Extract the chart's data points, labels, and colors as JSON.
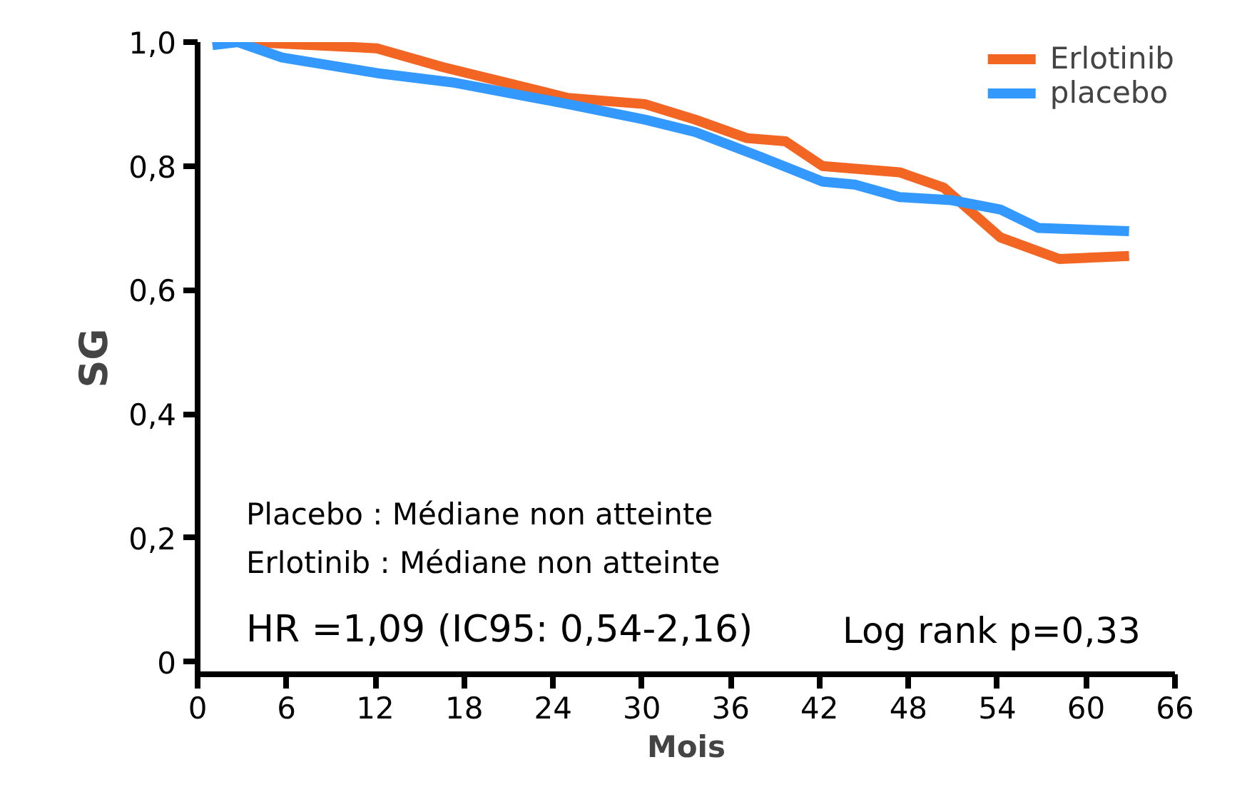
{
  "chart_data": {
    "type": "line",
    "xlabel": "Mois",
    "ylabel": "SG",
    "series": [
      {
        "name": "Erlotinib",
        "color": "#f26522",
        "x": [
          3.6,
          12.1,
          16.5,
          25,
          30.2,
          33.6,
          37.1,
          39.7,
          42.2,
          47.4,
          50.4,
          54.2,
          58.2,
          62.9
        ],
        "values": [
          1.0,
          0.99,
          0.96,
          0.91,
          0.9,
          0.875,
          0.845,
          0.84,
          0.8,
          0.79,
          0.765,
          0.685,
          0.65,
          0.655
        ]
      },
      {
        "name": "placebo",
        "color": "#3399ff",
        "x": [
          1,
          2.7,
          5.7,
          12.1,
          17.2,
          25,
          30.2,
          33.6,
          38,
          42.2,
          44.4,
          47.4,
          50.9,
          54.2,
          56.8,
          62.9
        ],
        "values": [
          0.995,
          1.0,
          0.975,
          0.95,
          0.935,
          0.9,
          0.875,
          0.855,
          0.815,
          0.775,
          0.77,
          0.75,
          0.745,
          0.73,
          0.7,
          0.695
        ]
      }
    ],
    "xlim": [
      0,
      66
    ],
    "xticks": [
      0,
      6,
      12,
      18,
      24,
      30,
      36,
      42,
      48,
      54,
      60,
      66
    ],
    "ylim": [
      -0.02,
      1.0
    ],
    "yticks": [
      0,
      {
        "value": 0.2,
        "label": "0,2"
      },
      {
        "value": 0.4,
        "label": "0,4"
      },
      {
        "value": 0.6,
        "label": "0,6"
      },
      {
        "value": 0.8,
        "label": "0,8"
      },
      {
        "value": 1.0,
        "label": "1,0"
      }
    ],
    "annotations": [
      "Placebo : Médiane non atteinte",
      "Erlotinib  : Médiane non atteinte",
      "HR =1,09 (IC95: 0,54-2,16)",
      "Log rank p=0,33"
    ],
    "legend": "top right",
    "grid": false,
    "marker": "none",
    "line_style": "solid"
  }
}
